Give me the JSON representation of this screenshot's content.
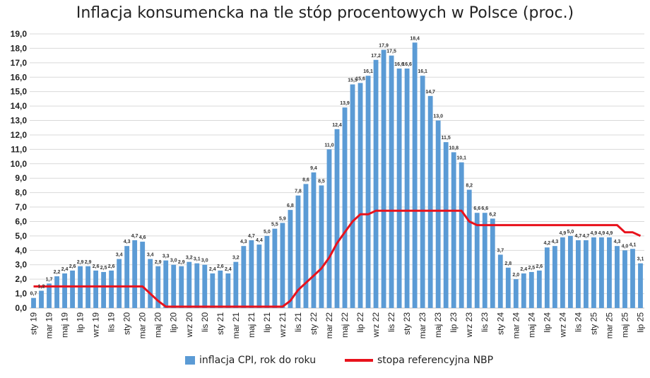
{
  "title": "Inflacja konsumencka na tle stóp procentowych w Polsce (proc.)",
  "colors": {
    "bar": "#5b9bd5",
    "line": "#e8121c",
    "grid": "#d9d9d9",
    "axis": "#bfbfbf",
    "text": "#222222"
  },
  "chart_data": {
    "type": "bar",
    "title": "Inflacja konsumencka na tle stóp procentowych w Polsce (proc.)",
    "ylim": [
      0,
      19
    ],
    "y_ticks": [
      "0,0",
      "1,0",
      "2,0",
      "3,0",
      "4,0",
      "5,0",
      "6,0",
      "7,0",
      "8,0",
      "9,0",
      "10,0",
      "11,0",
      "12,0",
      "13,0",
      "14,0",
      "15,0",
      "16,0",
      "17,0",
      "18,0",
      "19,0"
    ],
    "grid": true,
    "legend_position": "bottom",
    "x_tick_labels": [
      "sty 19",
      "mar 19",
      "maj 19",
      "lip 19",
      "wrz 19",
      "lis 19",
      "sty 20",
      "mar 20",
      "maj 20",
      "lip 20",
      "wrz 20",
      "lis 20",
      "sty 21",
      "mar 21",
      "maj 21",
      "lip 21",
      "wrz 21",
      "lis 21",
      "sty 22",
      "mar 22",
      "maj 22",
      "lip 22",
      "wrz 22",
      "lis 22",
      "sty 23",
      "mar 23",
      "maj 23",
      "lip 23",
      "wrz 23",
      "lis 23",
      "sty 24",
      "mar 24",
      "maj 24",
      "lip 24",
      "wrz 24",
      "lis 24",
      "sty 25",
      "mar 25",
      "maj 25",
      "lip 25"
    ],
    "series": [
      {
        "name": "inflacja CPI, rok do roku",
        "type": "bar",
        "values": [
          0.7,
          1.2,
          1.7,
          2.2,
          2.4,
          2.6,
          2.9,
          2.9,
          2.6,
          2.5,
          2.6,
          3.4,
          4.3,
          4.7,
          4.6,
          3.4,
          2.9,
          3.3,
          3.0,
          2.9,
          3.2,
          3.1,
          3.0,
          2.4,
          2.6,
          2.4,
          3.2,
          4.3,
          4.7,
          4.4,
          5.0,
          5.5,
          5.9,
          6.8,
          7.8,
          8.6,
          9.4,
          8.5,
          11.0,
          12.4,
          13.9,
          15.5,
          15.6,
          16.1,
          17.2,
          17.9,
          17.5,
          16.6,
          16.6,
          18.4,
          16.1,
          14.7,
          13.0,
          11.5,
          10.8,
          10.1,
          8.2,
          6.6,
          6.6,
          6.2,
          3.7,
          2.8,
          2.0,
          2.4,
          2.5,
          2.6,
          4.2,
          4.3,
          4.9,
          5.0,
          4.7,
          4.7,
          4.9,
          4.9,
          4.9,
          4.3,
          4.0,
          4.1,
          3.1
        ],
        "labels": [
          "0,7",
          "1,2",
          "1,7",
          "2,2",
          "2,4",
          "2,6",
          "2,9",
          "2,9",
          "2,6",
          "2,5",
          "2,6",
          "3,4",
          "4,3",
          "4,7",
          "4,6",
          "3,4",
          "2,9",
          "3,3",
          "3,0",
          "2,9",
          "3,2",
          "3,1",
          "3,0",
          "2,4",
          "2,6",
          "2,4",
          "3,2",
          "4,3",
          "4,7",
          "4,4",
          "5,0",
          "5,5",
          "5,9",
          "6,8",
          "7,8",
          "8,6",
          "9,4",
          "8,5",
          "11,0",
          "12,4",
          "13,9",
          "15,5",
          "15,6",
          "16,1",
          "17,2",
          "17,9",
          "17,5",
          "16,6",
          "16,6",
          "18,4",
          "16,1",
          "14,7",
          "13,0",
          "11,5",
          "10,8",
          "10,1",
          "8,2",
          "6,6",
          "6,6",
          "6,2",
          "3,7",
          "2,8",
          "2,0",
          "2,4",
          "2,5",
          "2,6",
          "4,2",
          "4,3",
          "4,9",
          "5,0",
          "4,7",
          "4,7",
          "4,9",
          "4,9",
          "4,9",
          "4,3",
          "4,0",
          "4,1",
          "3,1"
        ]
      },
      {
        "name": "stopa referencyjna NBP",
        "type": "line",
        "values": [
          1.5,
          1.5,
          1.5,
          1.5,
          1.5,
          1.5,
          1.5,
          1.5,
          1.5,
          1.5,
          1.5,
          1.5,
          1.5,
          1.5,
          1.5,
          1.0,
          0.5,
          0.1,
          0.1,
          0.1,
          0.1,
          0.1,
          0.1,
          0.1,
          0.1,
          0.1,
          0.1,
          0.1,
          0.1,
          0.1,
          0.1,
          0.1,
          0.1,
          0.5,
          1.25,
          1.75,
          2.25,
          2.75,
          3.5,
          4.5,
          5.25,
          6.0,
          6.5,
          6.5,
          6.75,
          6.75,
          6.75,
          6.75,
          6.75,
          6.75,
          6.75,
          6.75,
          6.75,
          6.75,
          6.75,
          6.75,
          6.0,
          5.75,
          5.75,
          5.75,
          5.75,
          5.75,
          5.75,
          5.75,
          5.75,
          5.75,
          5.75,
          5.75,
          5.75,
          5.75,
          5.75,
          5.75,
          5.75,
          5.75,
          5.75,
          5.75,
          5.25,
          5.25,
          5.0
        ]
      }
    ]
  },
  "legend": [
    {
      "label": "inflacja CPI, rok do roku",
      "kind": "bar"
    },
    {
      "label": "stopa referencyjna NBP",
      "kind": "line"
    }
  ]
}
